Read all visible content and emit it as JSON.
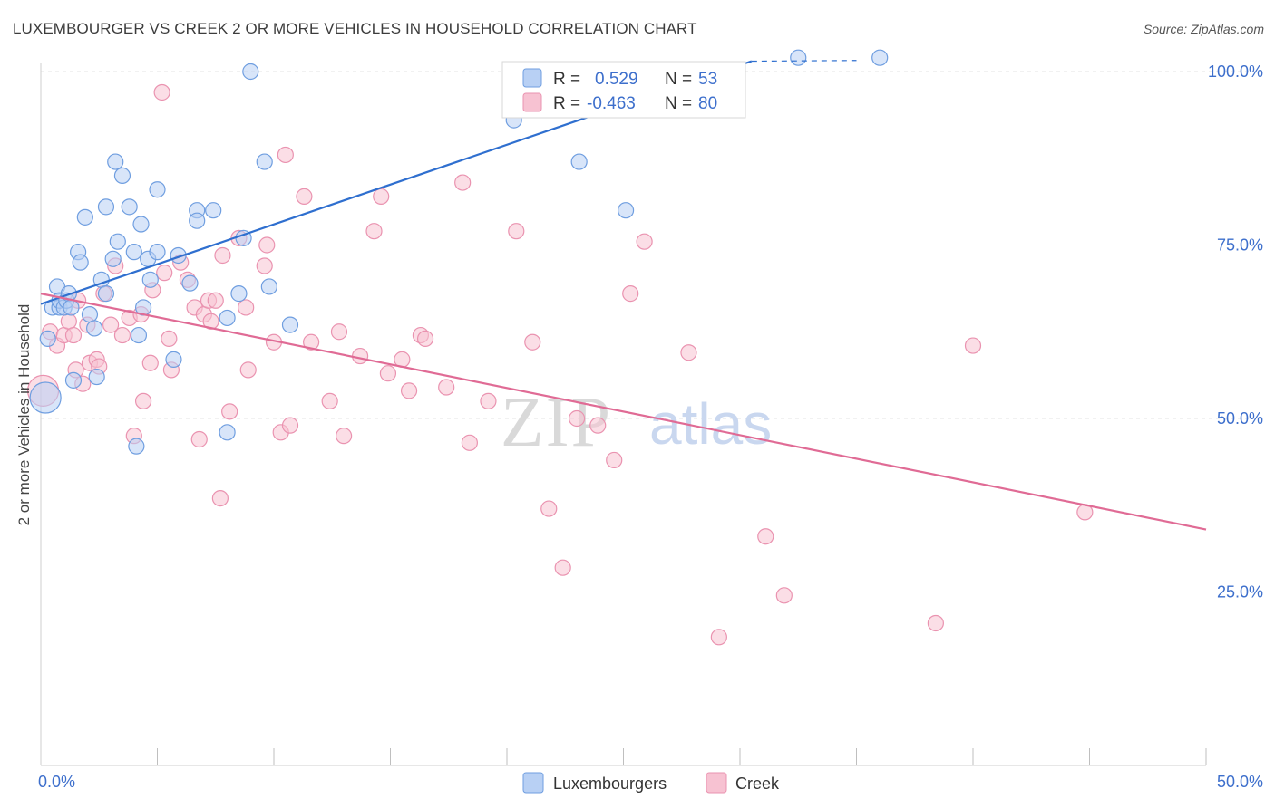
{
  "title": "LUXEMBOURGER VS CREEK 2 OR MORE VEHICLES IN HOUSEHOLD CORRELATION CHART",
  "source": "Source: ZipAtlas.com",
  "watermark": {
    "zip": "ZIP",
    "atlas": "atlas"
  },
  "colors": {
    "blue_fill": "#b8d0f4",
    "blue_stroke": "#6f9ee0",
    "blue_line": "#2f6fcf",
    "pink_fill": "#f7c2d2",
    "pink_stroke": "#ea93b0",
    "pink_line": "#e06b95",
    "grid": "#e3e3e3",
    "axis_text": "#3d6fcc"
  },
  "legend": {
    "rows": [
      {
        "r_label": "R =",
        "r_value": "0.529",
        "n_label": "N =",
        "n_value": "53",
        "series": "blue"
      },
      {
        "r_label": "R =",
        "r_value": "-0.463",
        "n_label": "N =",
        "n_value": "80",
        "series": "pink"
      }
    ]
  },
  "chart_data": {
    "type": "scatter",
    "title": "LUXEMBOURGER VS CREEK 2 OR MORE VEHICLES IN HOUSEHOLD CORRELATION CHART",
    "xlabel": "",
    "ylabel": "2 or more Vehicles in Household",
    "xlim": [
      0,
      50
    ],
    "ylim": [
      0,
      102
    ],
    "x_tick_labels": [
      {
        "value": 0,
        "label": "0.0%"
      },
      {
        "value": 50,
        "label": "50.0%"
      }
    ],
    "x_minor_ticks": [
      5,
      10,
      15,
      20,
      25,
      30,
      35,
      40,
      45,
      50
    ],
    "y_tick_labels": [
      {
        "value": 100,
        "label": "100.0%"
      },
      {
        "value": 75,
        "label": "75.0%"
      },
      {
        "value": 50,
        "label": "50.0%"
      },
      {
        "value": 25,
        "label": "25.0%"
      }
    ],
    "legend_position": "top-center",
    "series": [
      {
        "name": "Luxembourgers",
        "color": "blue",
        "trend": {
          "x0": 0,
          "y0": 66.5,
          "x1": 30.5,
          "y1": 101.5,
          "dashed_to_x": 35,
          "dashed_to_y": 101.6
        },
        "points": [
          [
            0.3,
            61.5
          ],
          [
            0.5,
            66
          ],
          [
            0.8,
            66
          ],
          [
            0.7,
            69
          ],
          [
            0.8,
            67
          ],
          [
            1.0,
            66
          ],
          [
            1.1,
            67
          ],
          [
            1.2,
            68
          ],
          [
            1.3,
            66
          ],
          [
            1.4,
            55.5
          ],
          [
            1.6,
            74
          ],
          [
            1.7,
            72.5
          ],
          [
            1.9,
            79
          ],
          [
            2.1,
            65
          ],
          [
            2.3,
            63
          ],
          [
            2.4,
            56
          ],
          [
            2.6,
            70
          ],
          [
            2.8,
            68
          ],
          [
            2.8,
            80.5
          ],
          [
            3.1,
            73
          ],
          [
            3.2,
            87
          ],
          [
            3.3,
            75.5
          ],
          [
            3.5,
            85
          ],
          [
            3.8,
            80.5
          ],
          [
            4.0,
            74
          ],
          [
            4.1,
            46
          ],
          [
            4.2,
            62
          ],
          [
            4.3,
            78
          ],
          [
            4.4,
            66
          ],
          [
            4.6,
            73
          ],
          [
            4.7,
            70
          ],
          [
            5.0,
            74
          ],
          [
            5.0,
            83
          ],
          [
            5.7,
            58.5
          ],
          [
            5.9,
            73.5
          ],
          [
            6.4,
            69.5
          ],
          [
            6.7,
            80
          ],
          [
            6.7,
            78.5
          ],
          [
            7.4,
            80
          ],
          [
            8.0,
            64.5
          ],
          [
            8.0,
            48
          ],
          [
            8.5,
            68
          ],
          [
            8.7,
            76
          ],
          [
            9.0,
            100
          ],
          [
            9.6,
            87
          ],
          [
            9.8,
            69
          ],
          [
            10.7,
            63.5
          ],
          [
            20.3,
            93
          ],
          [
            23.1,
            87
          ],
          [
            25.1,
            80
          ],
          [
            32.5,
            102
          ],
          [
            36.0,
            102
          ],
          [
            0.2,
            53
          ]
        ]
      },
      {
        "name": "Creek",
        "color": "pink",
        "trend": {
          "x0": 0,
          "y0": 68,
          "x1": 50,
          "y1": 34
        },
        "points": [
          [
            0.4,
            62.5
          ],
          [
            0.7,
            60.5
          ],
          [
            1.0,
            62
          ],
          [
            1.2,
            64
          ],
          [
            1.4,
            62
          ],
          [
            1.5,
            57
          ],
          [
            1.6,
            67
          ],
          [
            1.8,
            55
          ],
          [
            2.0,
            63.5
          ],
          [
            2.1,
            58
          ],
          [
            2.4,
            58.5
          ],
          [
            2.5,
            57.5
          ],
          [
            2.7,
            68
          ],
          [
            3.0,
            63.5
          ],
          [
            3.2,
            72
          ],
          [
            3.5,
            62
          ],
          [
            3.8,
            64.5
          ],
          [
            4.0,
            47.5
          ],
          [
            4.3,
            65
          ],
          [
            4.4,
            52.5
          ],
          [
            4.7,
            58
          ],
          [
            4.8,
            68.5
          ],
          [
            5.2,
            97
          ],
          [
            5.3,
            71
          ],
          [
            5.5,
            61.5
          ],
          [
            5.6,
            57
          ],
          [
            6.0,
            72.5
          ],
          [
            6.3,
            70
          ],
          [
            6.6,
            66
          ],
          [
            6.8,
            47
          ],
          [
            7.0,
            65
          ],
          [
            7.2,
            67
          ],
          [
            7.3,
            64
          ],
          [
            7.5,
            67
          ],
          [
            7.7,
            38.5
          ],
          [
            7.8,
            73.5
          ],
          [
            8.1,
            51
          ],
          [
            8.5,
            76
          ],
          [
            8.8,
            66
          ],
          [
            8.9,
            57
          ],
          [
            9.6,
            72
          ],
          [
            9.7,
            75
          ],
          [
            10.0,
            61
          ],
          [
            10.3,
            48
          ],
          [
            10.5,
            88
          ],
          [
            10.7,
            49
          ],
          [
            11.3,
            82
          ],
          [
            11.6,
            61
          ],
          [
            12.4,
            52.5
          ],
          [
            12.8,
            62.5
          ],
          [
            13.0,
            47.5
          ],
          [
            13.7,
            59
          ],
          [
            14.3,
            77
          ],
          [
            14.6,
            82
          ],
          [
            14.9,
            56.5
          ],
          [
            15.5,
            58.5
          ],
          [
            15.8,
            54
          ],
          [
            16.3,
            62
          ],
          [
            16.5,
            61.5
          ],
          [
            17.4,
            54.5
          ],
          [
            18.1,
            84
          ],
          [
            18.4,
            46.5
          ],
          [
            19.2,
            52.5
          ],
          [
            20.4,
            77
          ],
          [
            21.1,
            61
          ],
          [
            21.8,
            37
          ],
          [
            22.4,
            28.5
          ],
          [
            23.0,
            50
          ],
          [
            23.9,
            49
          ],
          [
            24.6,
            44
          ],
          [
            25.3,
            68
          ],
          [
            25.9,
            75.5
          ],
          [
            27.8,
            59.5
          ],
          [
            29.1,
            18.5
          ],
          [
            31.1,
            33
          ],
          [
            31.9,
            24.5
          ],
          [
            38.4,
            20.5
          ],
          [
            40.0,
            60.5
          ],
          [
            44.8,
            36.5
          ],
          [
            0.1,
            54
          ]
        ]
      }
    ]
  },
  "bottom_legend": [
    {
      "label": "Luxembourgers",
      "series": "blue"
    },
    {
      "label": "Creek",
      "series": "pink"
    }
  ]
}
